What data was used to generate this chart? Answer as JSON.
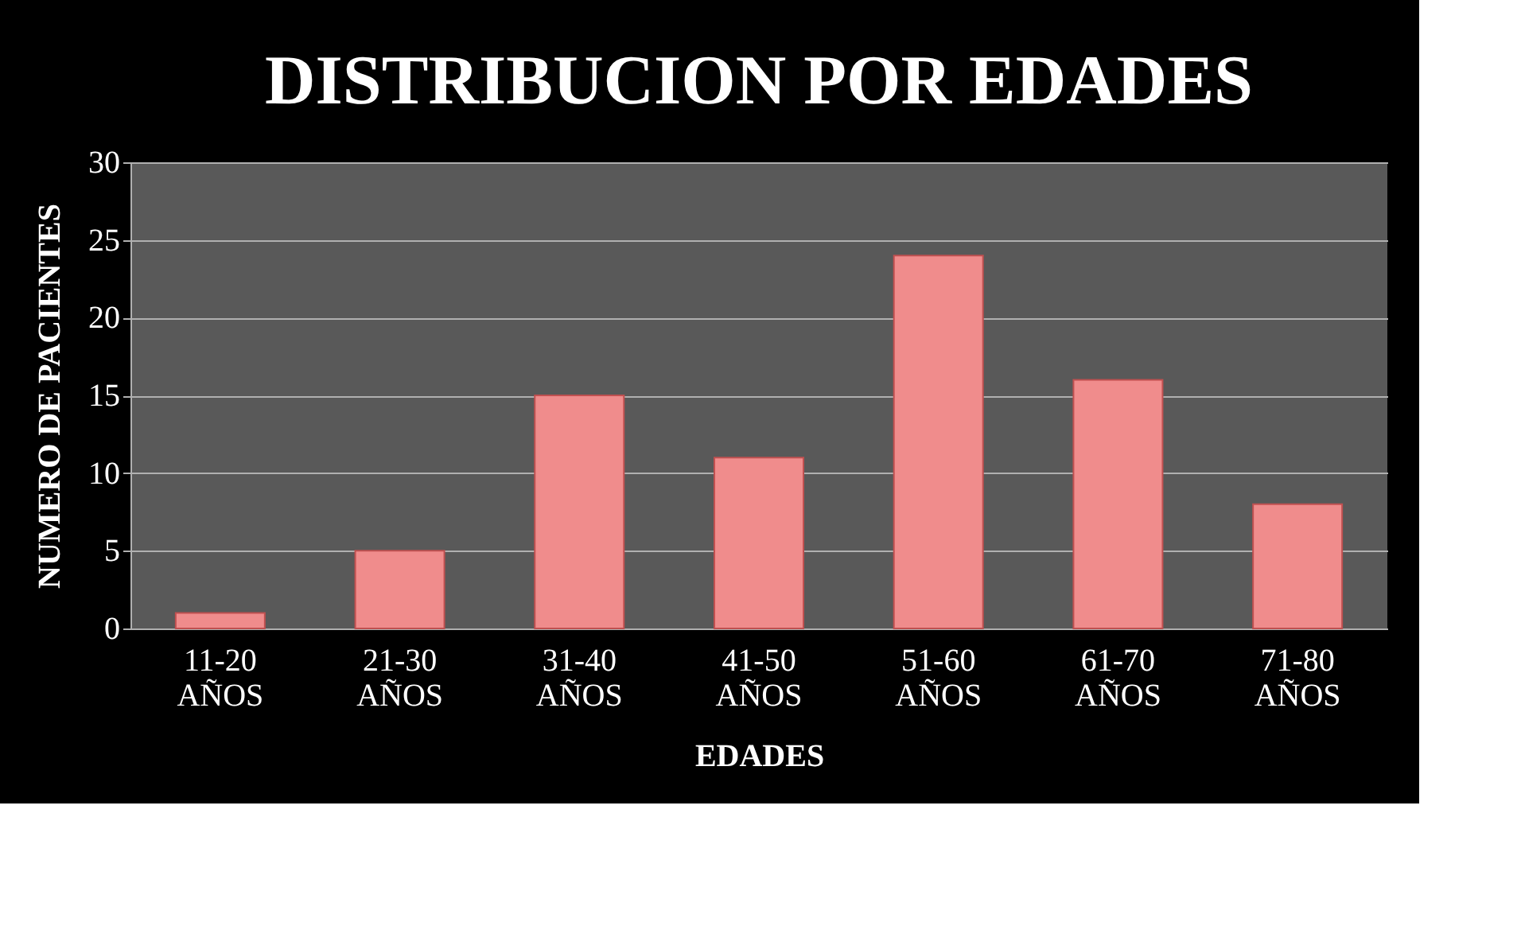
{
  "chart_data": {
    "type": "bar",
    "title": "DISTRIBUCION POR EDADES",
    "xlabel": "EDADES",
    "ylabel": "NUMERO DE PACIENTES",
    "categories": [
      "11-20\nAÑOS",
      "21-30\nAÑOS",
      "31-40\nAÑOS",
      "41-50\nAÑOS",
      "51-60\nAÑOS",
      "61-70\nAÑOS",
      "71-80\nAÑOS"
    ],
    "values": [
      1,
      5,
      15,
      11,
      24,
      16,
      8
    ],
    "color": "#f08c8c",
    "ylim": [
      0,
      30
    ],
    "yticks": [
      0,
      5,
      10,
      15,
      20,
      25,
      30
    ],
    "grid": "y"
  }
}
